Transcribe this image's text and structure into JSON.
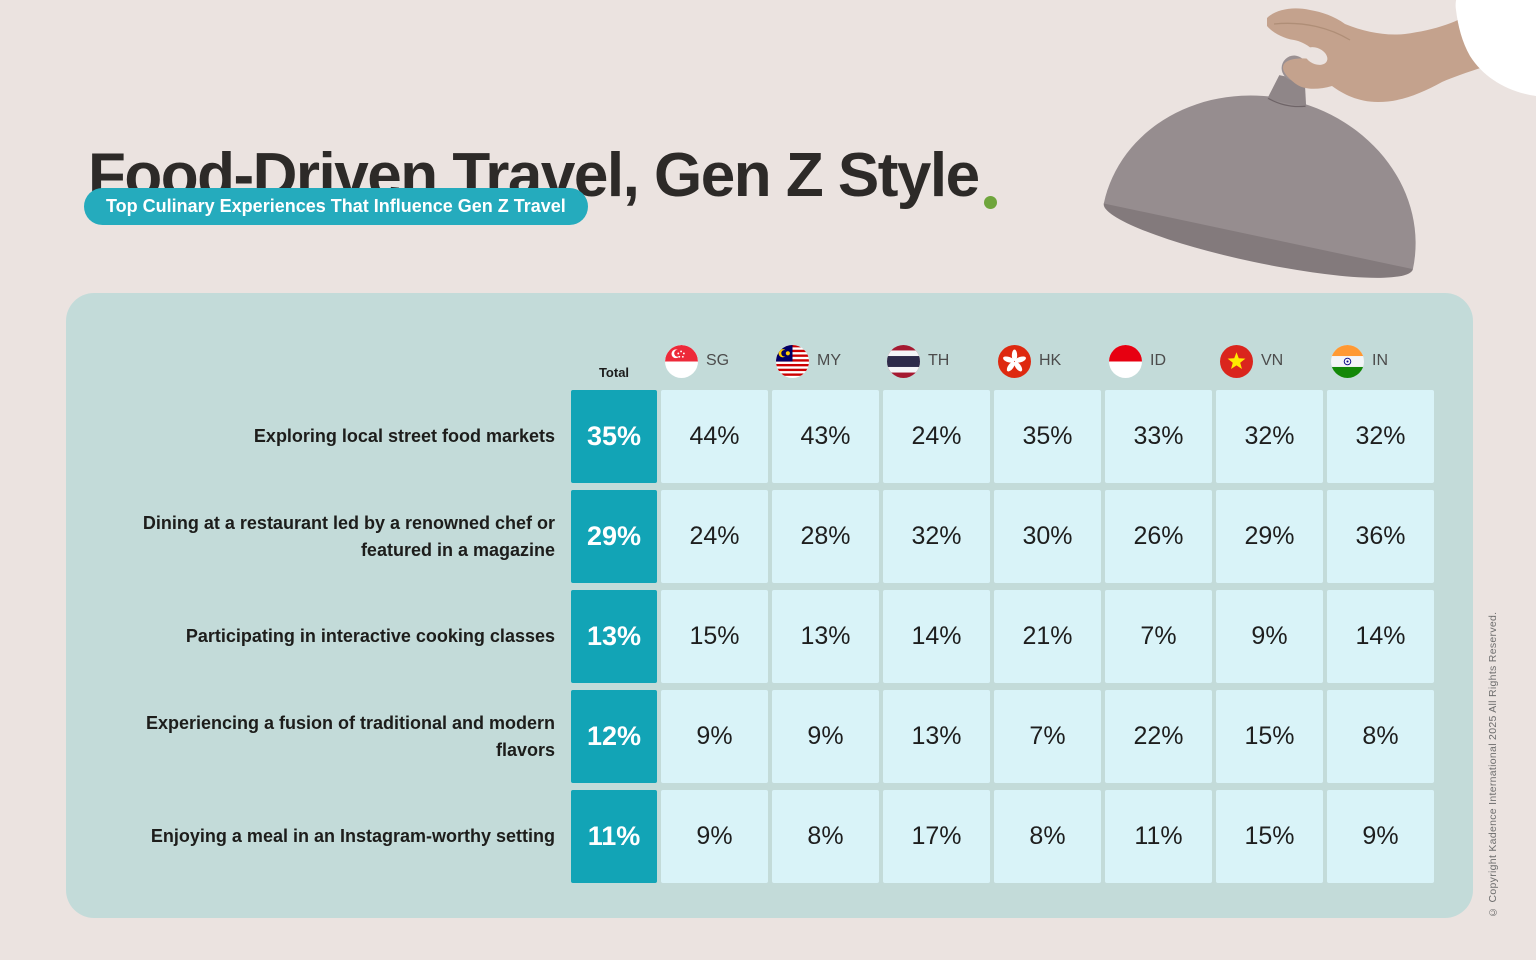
{
  "header": {
    "title": "Food-Driven Travel, Gen Z Style",
    "title_period": ".",
    "subtitle": "Top Culinary Experiences That Influence Gen Z Travel"
  },
  "table": {
    "total_label": "Total",
    "countries": [
      "SG",
      "MY",
      "TH",
      "HK",
      "ID",
      "VN",
      "IN"
    ],
    "rows": [
      {
        "label": "Exploring local street food markets",
        "total": "35%",
        "values": [
          "44%",
          "43%",
          "24%",
          "35%",
          "33%",
          "32%",
          "32%"
        ]
      },
      {
        "label": "Dining at a restaurant led by a renowned chef or featured in a magazine",
        "total": "29%",
        "values": [
          "24%",
          "28%",
          "32%",
          "30%",
          "26%",
          "29%",
          "36%"
        ]
      },
      {
        "label": "Participating in interactive cooking classes",
        "total": "13%",
        "values": [
          "15%",
          "13%",
          "14%",
          "21%",
          "7%",
          "9%",
          "14%"
        ]
      },
      {
        "label": "Experiencing a fusion of traditional and modern flavors",
        "total": "12%",
        "values": [
          "9%",
          "9%",
          "13%",
          "7%",
          "22%",
          "15%",
          "8%"
        ]
      },
      {
        "label": "Enjoying a meal in an Instagram-worthy setting",
        "total": "11%",
        "values": [
          "9%",
          "8%",
          "17%",
          "8%",
          "11%",
          "15%",
          "9%"
        ]
      }
    ]
  },
  "chart_data": {
    "type": "table",
    "title": "Food-Driven Travel, Gen Z Style",
    "subtitle": "Top Culinary Experiences That Influence Gen Z Travel",
    "unit": "%",
    "columns": [
      "Total",
      "SG",
      "MY",
      "TH",
      "HK",
      "ID",
      "VN",
      "IN"
    ],
    "rows": [
      {
        "label": "Exploring local street food markets",
        "values": [
          35,
          44,
          43,
          24,
          35,
          33,
          32,
          32
        ]
      },
      {
        "label": "Dining at a restaurant led by a renowned chef or featured in a magazine",
        "values": [
          29,
          24,
          28,
          32,
          30,
          26,
          29,
          36
        ]
      },
      {
        "label": "Participating in interactive cooking classes",
        "values": [
          13,
          15,
          13,
          14,
          21,
          7,
          9,
          14
        ]
      },
      {
        "label": "Experiencing a fusion of traditional and modern flavors",
        "values": [
          12,
          9,
          9,
          13,
          7,
          22,
          15,
          8
        ]
      },
      {
        "label": "Enjoying a meal in an Instagram-worthy setting",
        "values": [
          11,
          9,
          8,
          17,
          8,
          11,
          15,
          9
        ]
      }
    ]
  },
  "footer": {
    "copyright": "© Copyright Kadence International 2025 All Rights Reserved."
  },
  "colors": {
    "background": "#EBE3E0",
    "panel": "#C3DBD9",
    "accent_teal": "#12A4B6",
    "pill_teal": "#25ABBD",
    "cell_cyan": "#D9F3F8",
    "title_text": "#2D2A28",
    "title_green_dot": "#6FA53C"
  }
}
